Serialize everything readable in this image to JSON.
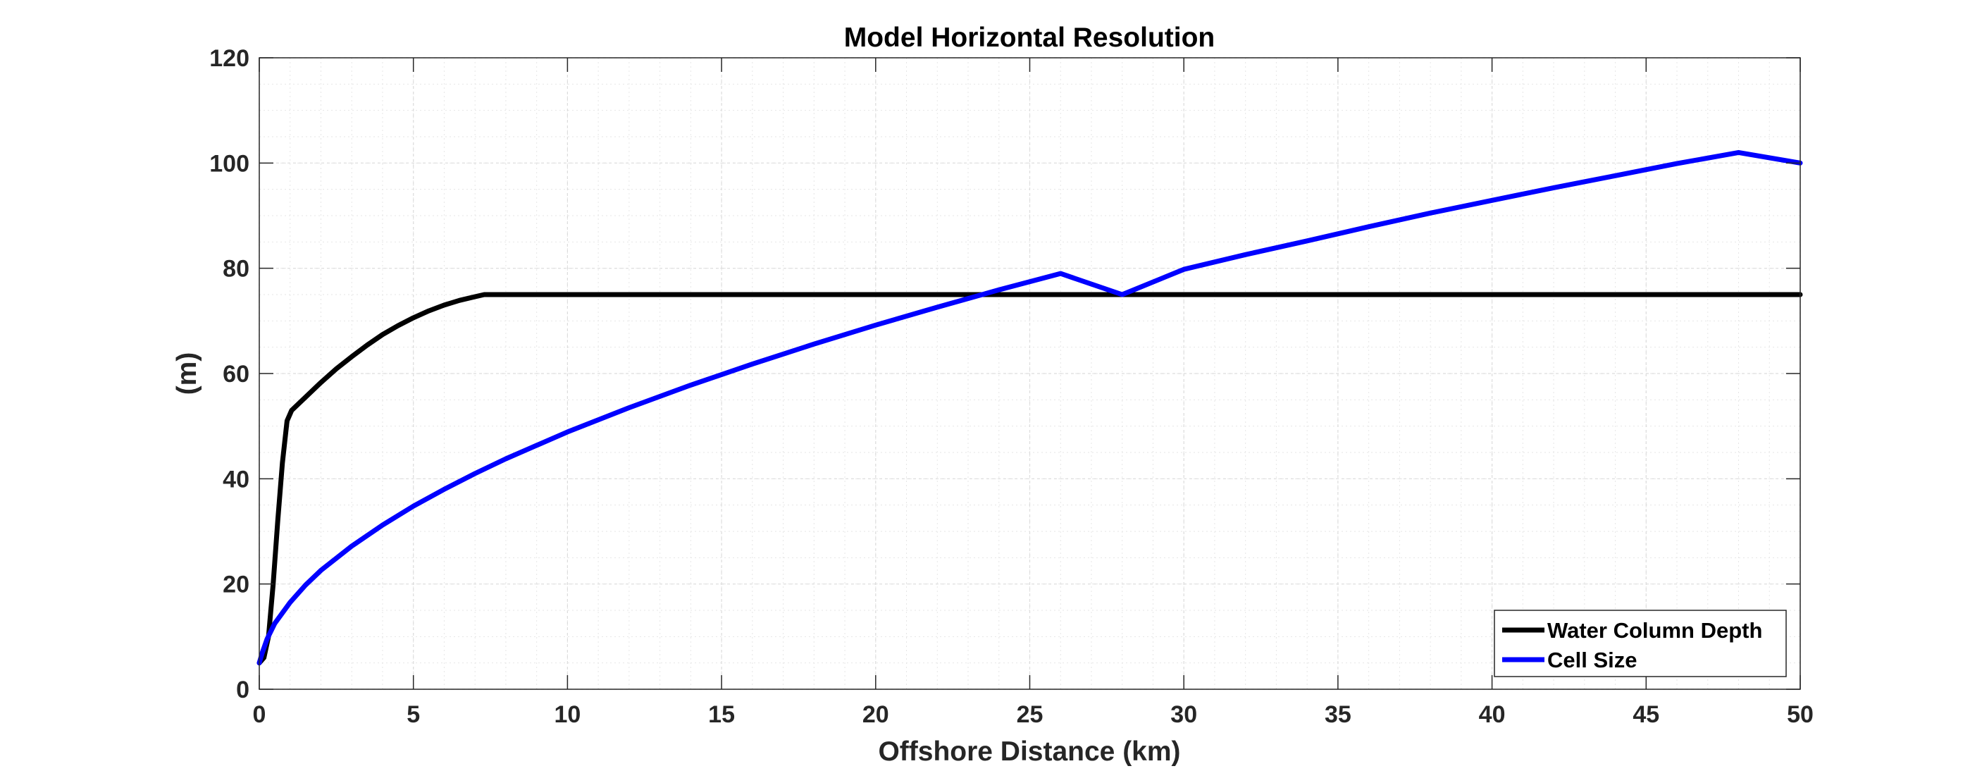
{
  "chart_data": {
    "type": "line",
    "title": "Model Horizontal Resolution",
    "xlabel": "Offshore Distance (km)",
    "ylabel": "(m)",
    "xlim": [
      0,
      50
    ],
    "ylim": [
      0,
      120
    ],
    "xticks": [
      0,
      5,
      10,
      15,
      20,
      25,
      30,
      35,
      40,
      45,
      50
    ],
    "yticks": [
      0,
      20,
      40,
      60,
      80,
      100,
      120
    ],
    "grid": true,
    "minor_grid": true,
    "legend_position": "bottom-right",
    "series": [
      {
        "name": "Water Column Depth",
        "color": "#000000",
        "points": [
          [
            0,
            5
          ],
          [
            0.15,
            6
          ],
          [
            0.3,
            10
          ],
          [
            0.45,
            20
          ],
          [
            0.6,
            32
          ],
          [
            0.75,
            43
          ],
          [
            0.9,
            51
          ],
          [
            1.05,
            53
          ],
          [
            1.5,
            55.5
          ],
          [
            2,
            58.3
          ],
          [
            2.5,
            60.9
          ],
          [
            3,
            63.2
          ],
          [
            3.5,
            65.4
          ],
          [
            4,
            67.4
          ],
          [
            4.5,
            69.1
          ],
          [
            5,
            70.6
          ],
          [
            5.5,
            71.9
          ],
          [
            6,
            73
          ],
          [
            6.5,
            73.9
          ],
          [
            7,
            74.6
          ],
          [
            7.3,
            75
          ],
          [
            10,
            75
          ],
          [
            20,
            75
          ],
          [
            30,
            75
          ],
          [
            40,
            75
          ],
          [
            50,
            75
          ]
        ]
      },
      {
        "name": "Cell Size",
        "color": "#0000ff",
        "points": [
          [
            0,
            5
          ],
          [
            0.1,
            7
          ],
          [
            0.25,
            9.5
          ],
          [
            0.5,
            12.5
          ],
          [
            1,
            16.5
          ],
          [
            1.5,
            19.8
          ],
          [
            2,
            22.6
          ],
          [
            3,
            27.2
          ],
          [
            4,
            31.2
          ],
          [
            5,
            34.8
          ],
          [
            6,
            38
          ],
          [
            7,
            41
          ],
          [
            8,
            43.8
          ],
          [
            10,
            48.9
          ],
          [
            12,
            53.5
          ],
          [
            14,
            57.8
          ],
          [
            16,
            61.8
          ],
          [
            18,
            65.6
          ],
          [
            20,
            69.2
          ],
          [
            22,
            72.6
          ],
          [
            24,
            75.9
          ],
          [
            26,
            79
          ],
          [
            28,
            75
          ],
          [
            30,
            79.8
          ],
          [
            32,
            82.6
          ],
          [
            34,
            85.2
          ],
          [
            36,
            87.9
          ],
          [
            38,
            90.5
          ],
          [
            40,
            92.9
          ],
          [
            42,
            95.3
          ],
          [
            44,
            97.6
          ],
          [
            46,
            99.9
          ],
          [
            48,
            102
          ],
          [
            50,
            100
          ]
        ]
      }
    ]
  }
}
